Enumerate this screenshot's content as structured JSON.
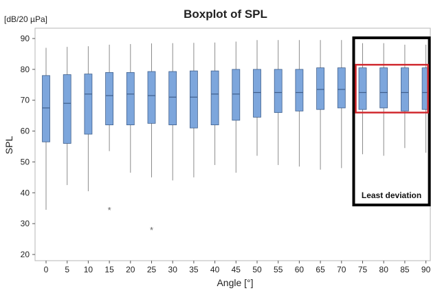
{
  "chart_data": {
    "type": "boxplot",
    "title": "Boxplot of SPL",
    "unit_label": "[dB/20 µPa]",
    "xlabel": "Angle [°]",
    "ylabel": "SPL",
    "ylim": [
      19,
      93
    ],
    "yticks": [
      20,
      30,
      40,
      50,
      60,
      70,
      80,
      90
    ],
    "grid": false,
    "categories": [
      "0",
      "5",
      "10",
      "15",
      "20",
      "25",
      "30",
      "35",
      "40",
      "45",
      "50",
      "55",
      "60",
      "65",
      "70",
      "75",
      "80",
      "85",
      "90"
    ],
    "boxes": [
      {
        "x": "0",
        "whisker_low": 34.5,
        "q1": 56.5,
        "median": 67.5,
        "q3": 78.0,
        "whisker_high": 87.0
      },
      {
        "x": "5",
        "whisker_low": 42.5,
        "q1": 56.0,
        "median": 69.0,
        "q3": 78.3,
        "whisker_high": 87.3
      },
      {
        "x": "10",
        "whisker_low": 40.5,
        "q1": 59.0,
        "median": 72.0,
        "q3": 78.5,
        "whisker_high": 87.5
      },
      {
        "x": "15",
        "whisker_low": 53.5,
        "q1": 62.0,
        "median": 71.5,
        "q3": 79.0,
        "whisker_high": 88.0
      },
      {
        "x": "20",
        "whisker_low": 46.5,
        "q1": 62.0,
        "median": 72.0,
        "q3": 79.0,
        "whisker_high": 88.2
      },
      {
        "x": "25",
        "whisker_low": 45.0,
        "q1": 62.5,
        "median": 71.5,
        "q3": 79.3,
        "whisker_high": 88.4
      },
      {
        "x": "30",
        "whisker_low": 44.0,
        "q1": 62.0,
        "median": 71.0,
        "q3": 79.3,
        "whisker_high": 88.5
      },
      {
        "x": "35",
        "whisker_low": 45.0,
        "q1": 61.0,
        "median": 71.0,
        "q3": 79.5,
        "whisker_high": 88.6
      },
      {
        "x": "40",
        "whisker_low": 49.0,
        "q1": 62.0,
        "median": 72.0,
        "q3": 79.5,
        "whisker_high": 88.7
      },
      {
        "x": "45",
        "whisker_low": 46.5,
        "q1": 63.5,
        "median": 72.0,
        "q3": 80.0,
        "whisker_high": 89.0
      },
      {
        "x": "50",
        "whisker_low": 52.0,
        "q1": 64.5,
        "median": 72.5,
        "q3": 80.0,
        "whisker_high": 89.5
      },
      {
        "x": "55",
        "whisker_low": 49.0,
        "q1": 66.0,
        "median": 72.5,
        "q3": 80.0,
        "whisker_high": 89.5
      },
      {
        "x": "60",
        "whisker_low": 48.5,
        "q1": 66.5,
        "median": 72.5,
        "q3": 80.0,
        "whisker_high": 89.5
      },
      {
        "x": "65",
        "whisker_low": 47.5,
        "q1": 67.0,
        "median": 73.5,
        "q3": 80.5,
        "whisker_high": 89.5
      },
      {
        "x": "70",
        "whisker_low": 48.0,
        "q1": 67.5,
        "median": 73.5,
        "q3": 80.5,
        "whisker_high": 89.5
      },
      {
        "x": "75",
        "whisker_low": 52.5,
        "q1": 67.0,
        "median": 72.5,
        "q3": 80.5,
        "whisker_high": 88.5
      },
      {
        "x": "80",
        "whisker_low": 52.0,
        "q1": 67.5,
        "median": 72.5,
        "q3": 80.5,
        "whisker_high": 88.5
      },
      {
        "x": "85",
        "whisker_low": 54.5,
        "q1": 66.5,
        "median": 72.5,
        "q3": 80.5,
        "whisker_high": 88.0
      },
      {
        "x": "90",
        "whisker_low": 53.0,
        "q1": 67.0,
        "median": 72.5,
        "q3": 80.5,
        "whisker_high": 88.0
      }
    ],
    "outliers": [
      {
        "x": "15",
        "y": 34.5
      },
      {
        "x": "25",
        "y": 28.0
      }
    ],
    "annotations": [
      {
        "text": "Least deviation",
        "range": [
          "75",
          "90"
        ],
        "style": "black-frame"
      },
      {
        "range_x": [
          "75",
          "90"
        ],
        "range_y": [
          66,
          81.5
        ],
        "style": "red-frame"
      }
    ],
    "colors": {
      "box_fill": "#7da6dc",
      "box_stroke": "#3f5f8c",
      "whisker": "#8a8a8a",
      "frame": "#b5b5b5",
      "black_frame": "#000000",
      "red_frame": "#d0282e",
      "outlier": "#666666"
    }
  }
}
